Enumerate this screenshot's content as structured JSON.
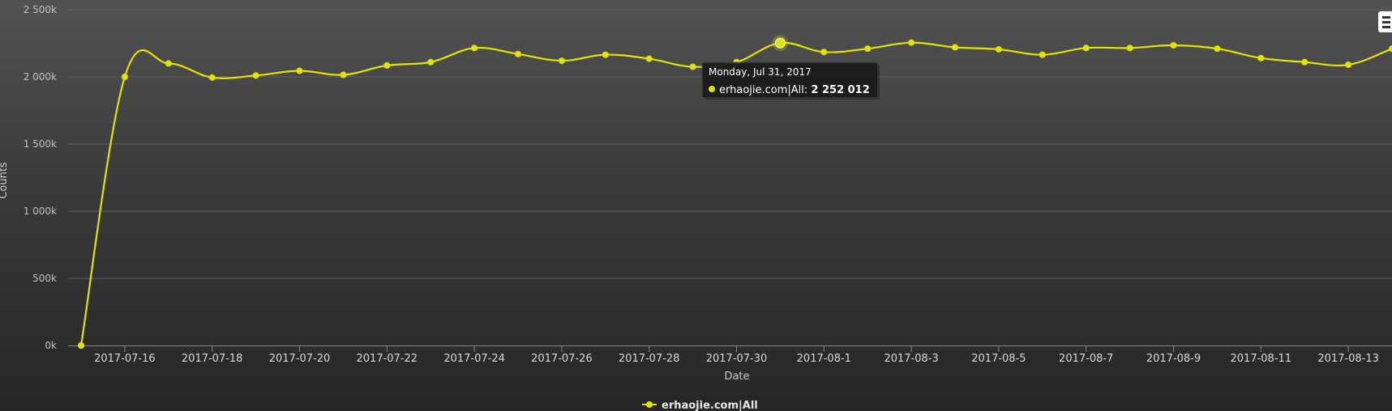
{
  "chart_data": {
    "type": "line",
    "title": "",
    "xlabel": "Date",
    "ylabel": "Counts",
    "ylim": [
      0,
      2500000
    ],
    "y_ticks": [
      0,
      500000,
      1000000,
      1500000,
      2000000,
      2500000
    ],
    "y_tick_labels": [
      "0k",
      "500k",
      "1 000k",
      "1 500k",
      "2 000k",
      "2 500k"
    ],
    "x_tick_labels": [
      "2017-07-16",
      "2017-07-18",
      "2017-07-20",
      "2017-07-22",
      "2017-07-24",
      "2017-07-26",
      "2017-07-28",
      "2017-07-30",
      "2017-08-1",
      "2017-08-3",
      "2017-08-5",
      "2017-08-7",
      "2017-08-9",
      "2017-08-11",
      "2017-08-13"
    ],
    "x": [
      "2017-07-15",
      "2017-07-16",
      "2017-07-17",
      "2017-07-18",
      "2017-07-19",
      "2017-07-20",
      "2017-07-21",
      "2017-07-22",
      "2017-07-23",
      "2017-07-24",
      "2017-07-25",
      "2017-07-26",
      "2017-07-27",
      "2017-07-28",
      "2017-07-29",
      "2017-07-30",
      "2017-07-31",
      "2017-08-01",
      "2017-08-02",
      "2017-08-03",
      "2017-08-04",
      "2017-08-05",
      "2017-08-06",
      "2017-08-07",
      "2017-08-08",
      "2017-08-09",
      "2017-08-10",
      "2017-08-11",
      "2017-08-12",
      "2017-08-13",
      "2017-08-14"
    ],
    "series": [
      {
        "name": "erhaojie.com|All",
        "color": "#e3e300",
        "values": [
          0,
          2000000,
          2100000,
          1995000,
          2010000,
          2045000,
          2015000,
          2085000,
          2110000,
          2215000,
          2170000,
          2120000,
          2165000,
          2135000,
          2075000,
          2110000,
          2252012,
          2185000,
          2210000,
          2255000,
          2220000,
          2205000,
          2165000,
          2215000,
          2215000,
          2235000,
          2210000,
          2140000,
          2110000,
          2090000,
          2210000
        ]
      }
    ],
    "legend_position": "bottom-center",
    "grid": true,
    "tooltip": {
      "date_label": "Monday, Jul 31, 2017",
      "series_label": "erhaojie.com|All: ",
      "value_label": "2 252 012",
      "point_date": "2017-07-31"
    }
  }
}
